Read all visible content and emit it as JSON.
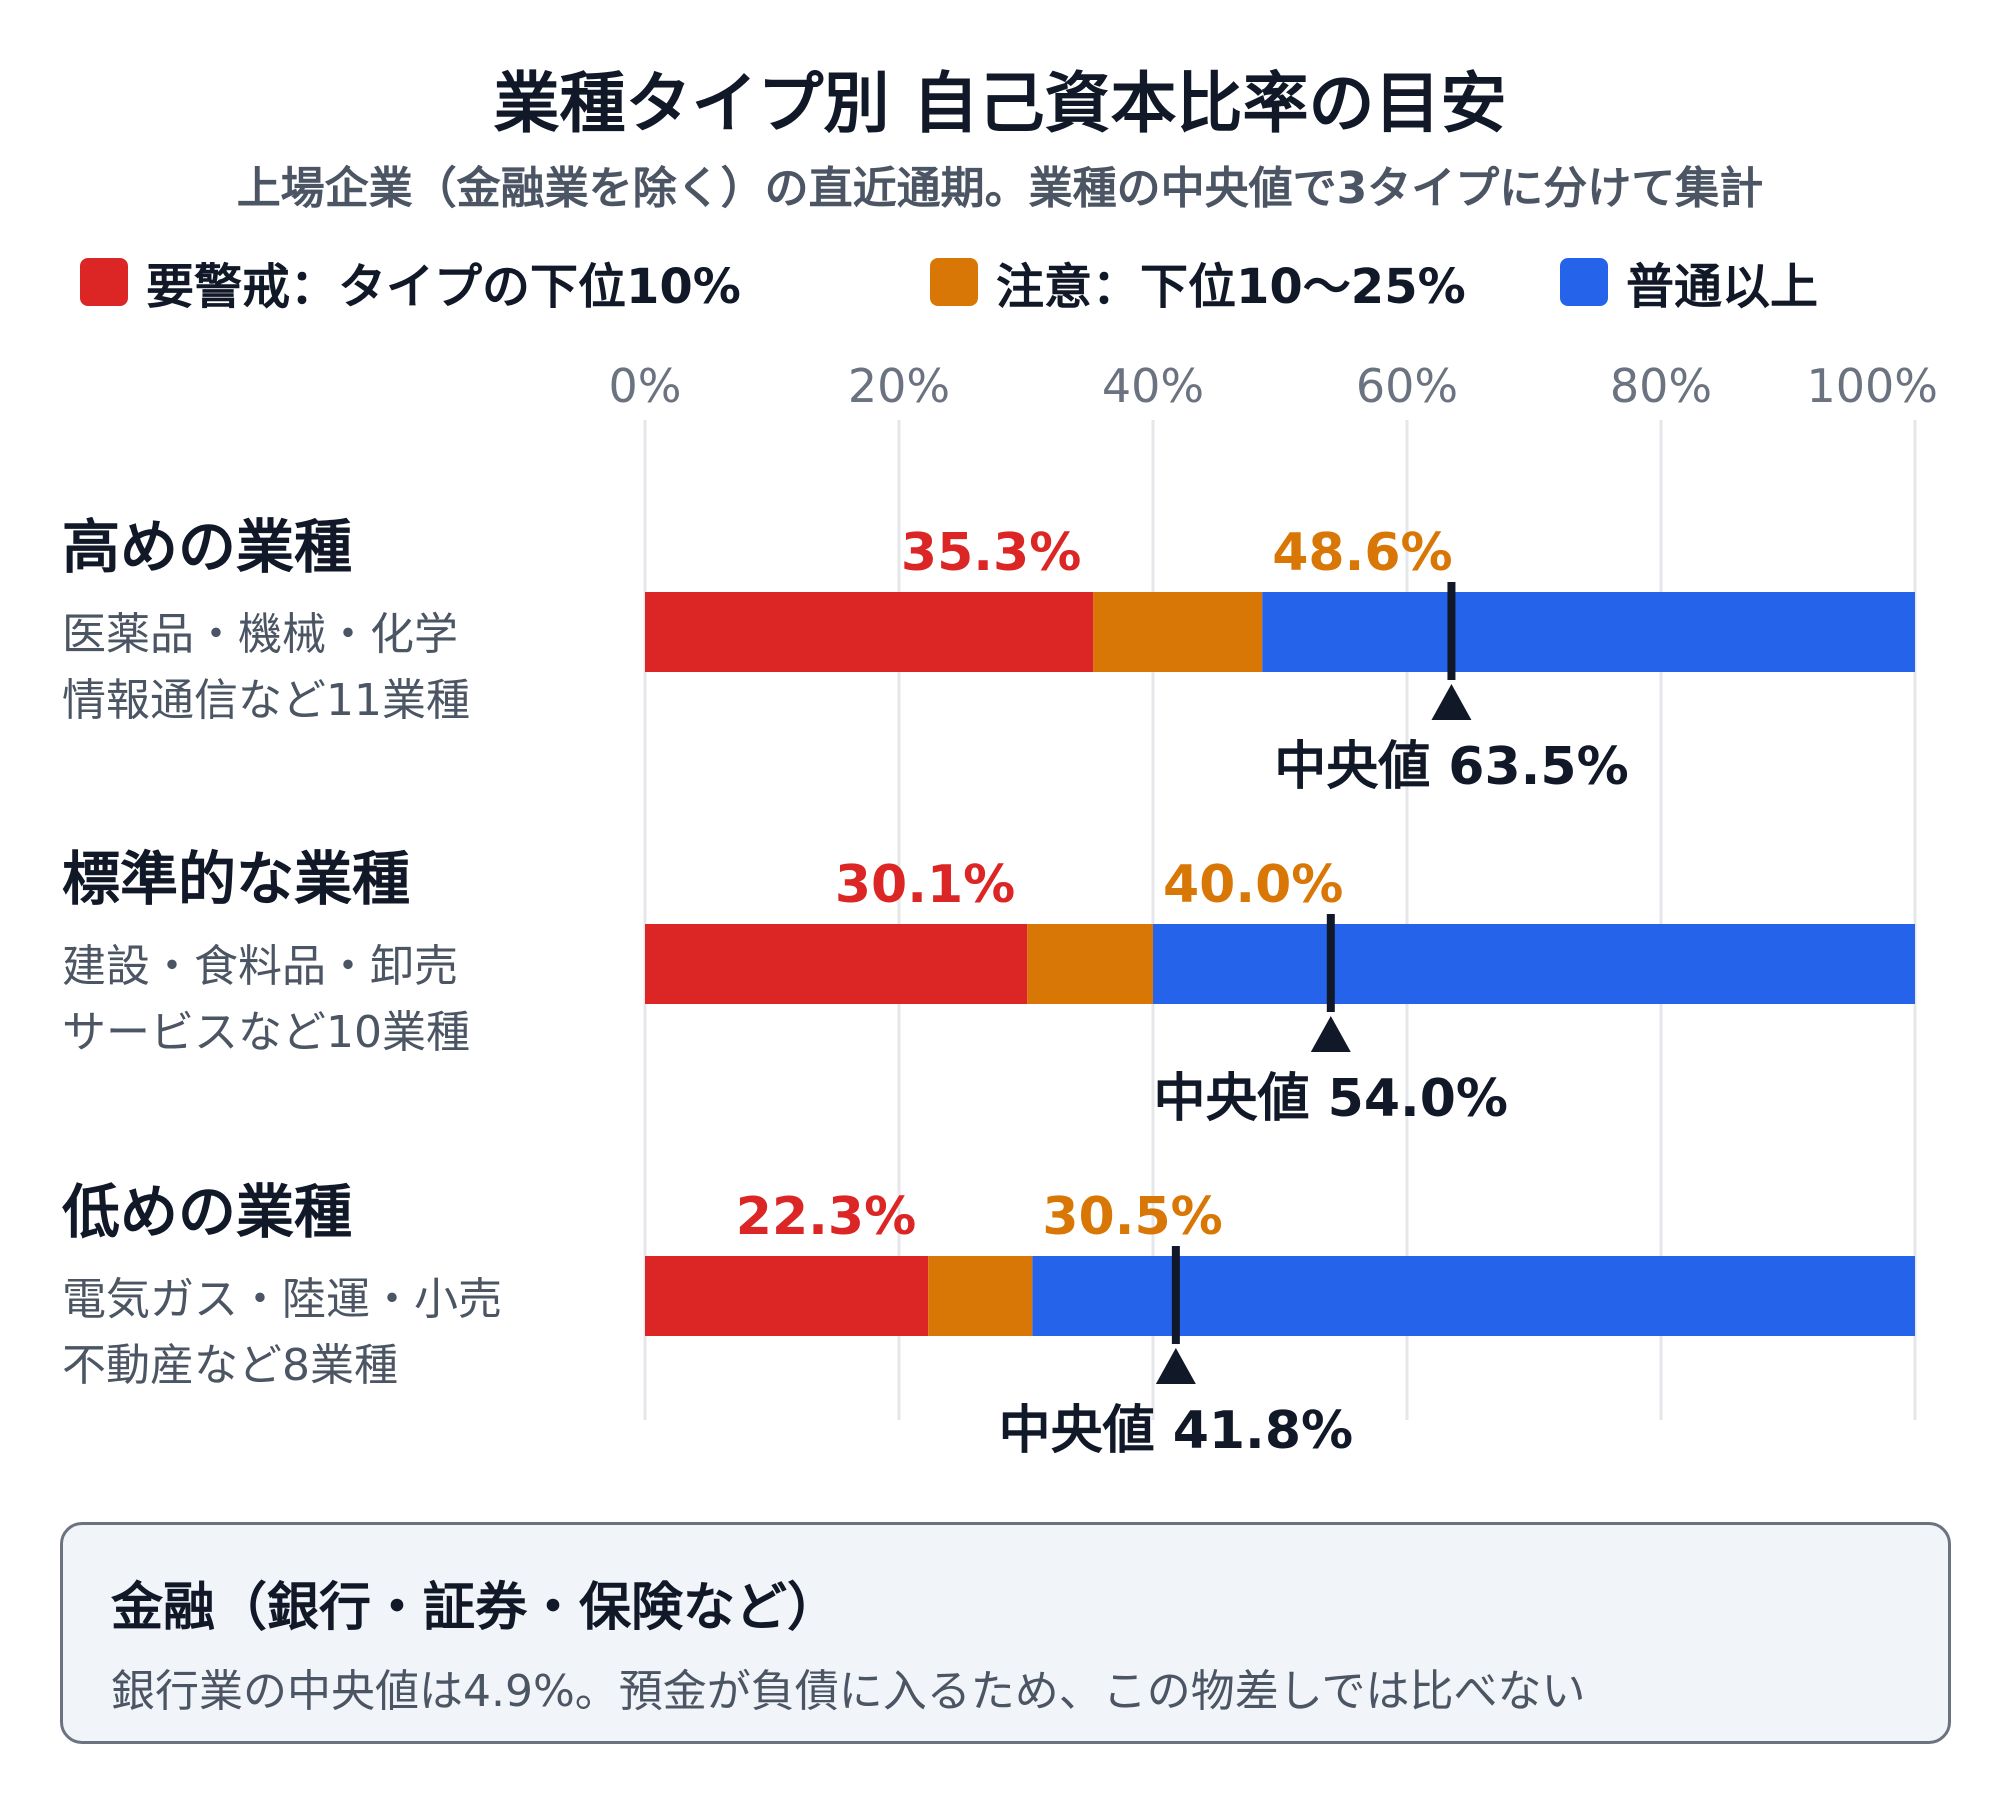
{
  "title": "業種タイプ別 自己資本比率の目安",
  "subtitle": "上場企業（金融業を除く）の直近通期。業種の中央値で3タイプに分けて集計",
  "colors": {
    "red": "#dc2626",
    "orange": "#d97706",
    "blue": "#2563eb",
    "marker": "#111827",
    "grid": "#e5e7eb",
    "tick": "#6b7280"
  },
  "legend": [
    {
      "label": "要警戒：タイプの下位10%",
      "color": "#dc2626"
    },
    {
      "label": "注意：下位10〜25%",
      "color": "#d97706"
    },
    {
      "label": "普通以上",
      "color": "#2563eb"
    }
  ],
  "groups": [
    {
      "title": "高めの業種",
      "desc1": "医薬品・機械・化学",
      "desc2": "情報通信など11業種"
    },
    {
      "title": "標準的な業種",
      "desc1": "建設・食料品・卸売",
      "desc2": "サービスなど10業種"
    },
    {
      "title": "低めの業種",
      "desc1": "電気ガス・陸運・小売",
      "desc2": "不動産など8業種"
    }
  ],
  "note": {
    "title": "金融（銀行・証券・保険など）",
    "text": "銀行業の中央値は4.9%。預金が負債に入るため、この物差しでは比べない"
  },
  "chart_data": {
    "type": "bar",
    "orientation": "horizontal-stacked",
    "xlim": [
      0,
      100
    ],
    "ticks": [
      "0%",
      "20%",
      "40%",
      "60%",
      "80%",
      "100%"
    ],
    "tick_values": [
      0,
      20,
      40,
      60,
      80,
      100
    ],
    "grid": true,
    "median_label": "中央値",
    "categories": [
      "高めの業種",
      "標準的な業種",
      "低めの業種"
    ],
    "series": [
      {
        "name": "要警戒：タイプの下位10%",
        "thresholds": [
          35.3,
          30.1,
          22.3
        ],
        "labels": [
          "35.3%",
          "30.1%",
          "22.3%"
        ]
      },
      {
        "name": "注意：下位10〜25%",
        "thresholds": [
          48.6,
          40.0,
          30.5
        ],
        "labels": [
          "48.6%",
          "40.0%",
          "30.5%"
        ]
      },
      {
        "name": "普通以上",
        "thresholds": [
          100,
          100,
          100
        ]
      }
    ],
    "medians": [
      63.5,
      54.0,
      41.8
    ],
    "median_labels": [
      "63.5%",
      "54.0%",
      "41.8%"
    ]
  }
}
